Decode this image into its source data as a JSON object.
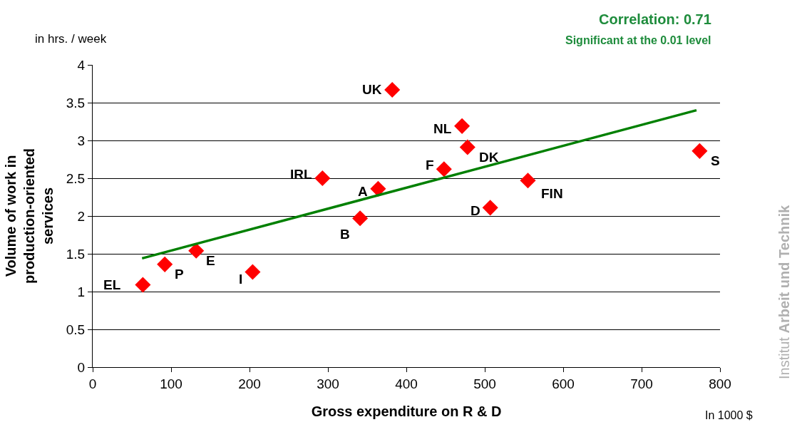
{
  "chart_data": {
    "type": "scatter",
    "xlabel": "Gross expenditure on R & D",
    "ylabel": "Volume of work in production-oriented services",
    "x": [
      64,
      92,
      132,
      204,
      293,
      341,
      364,
      382,
      448,
      471,
      478,
      507,
      555,
      774
    ],
    "series": [
      {
        "color": "#ff0000",
        "marker": "diamond",
        "values": [
          1.09,
          1.36,
          1.54,
          1.26,
          2.5,
          1.97,
          2.36,
          3.67,
          2.62,
          3.19,
          2.91,
          2.11,
          2.47,
          2.86
        ]
      },
      {
        "type": "line",
        "color": "#008000",
        "x": [
          63,
          770
        ],
        "values": [
          1.44,
          3.4
        ]
      }
    ],
    "annotations": [
      {
        "text": "EL",
        "x": 64,
        "y": 1.09
      },
      {
        "text": "P",
        "x": 92,
        "y": 1.36
      },
      {
        "text": "E",
        "x": 132,
        "y": 1.54
      },
      {
        "text": "I",
        "x": 204,
        "y": 1.26
      },
      {
        "text": "IRL",
        "x": 293,
        "y": 2.5
      },
      {
        "text": "B",
        "x": 341,
        "y": 1.97
      },
      {
        "text": "A",
        "x": 364,
        "y": 2.36
      },
      {
        "text": "UK",
        "x": 382,
        "y": 3.67
      },
      {
        "text": "F",
        "x": 448,
        "y": 2.62
      },
      {
        "text": "NL",
        "x": 471,
        "y": 3.19
      },
      {
        "text": "DK",
        "x": 478,
        "y": 2.91
      },
      {
        "text": "D",
        "x": 507,
        "y": 2.11
      },
      {
        "text": "FIN",
        "x": 555,
        "y": 2.47
      },
      {
        "text": "S",
        "x": 774,
        "y": 2.86
      },
      "Correlation: 0.71",
      "Significant at the 0.01 level",
      "in hrs. / week",
      "In 1000 $",
      "Institut Arbeit und Technik"
    ],
    "xlim": [
      0,
      800
    ],
    "xticks": [
      0,
      100,
      200,
      300,
      400,
      500,
      600,
      700,
      800
    ],
    "ylim": [
      0,
      4
    ],
    "yticks": [
      0,
      0.5,
      1,
      1.5,
      2,
      2.5,
      3,
      3.5,
      4
    ],
    "grid": "y"
  }
}
